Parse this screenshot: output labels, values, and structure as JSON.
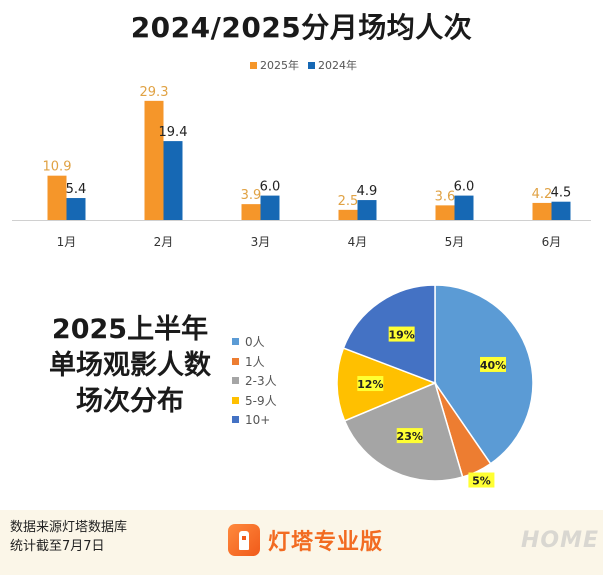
{
  "chart_data": [
    {
      "type": "bar",
      "title": "2024/2025分月场均人次",
      "categories": [
        "1月",
        "2月",
        "3月",
        "4月",
        "5月",
        "6月"
      ],
      "series": [
        {
          "name": "2025年",
          "color": "#f5962a",
          "values": [
            10.9,
            29.3,
            3.9,
            2.5,
            3.6,
            4.2
          ]
        },
        {
          "name": "2024年",
          "color": "#1668b4",
          "values": [
            5.4,
            19.4,
            6.0,
            4.9,
            6.0,
            4.5
          ]
        }
      ],
      "value_labels": [
        [
          "10.9",
          "29.3",
          "3.9",
          "2.5",
          "3.6",
          "4.2"
        ],
        [
          "5.4",
          "19.4",
          "6.0",
          "4.9",
          "6.0",
          "4.5"
        ]
      ],
      "ylim": [
        0,
        30
      ],
      "legend": "top-center",
      "grid": false
    },
    {
      "type": "pie",
      "title_lines": [
        "2025上半年",
        "单场观影人数",
        "场次分布"
      ],
      "labels": [
        "0人",
        "1人",
        "2-3人",
        "5-9人",
        "10+"
      ],
      "values": [
        40,
        5,
        23,
        12,
        19
      ],
      "value_labels": [
        "40%",
        "5%",
        "23%",
        "12%",
        "19%"
      ],
      "colors": [
        "#5b9bd5",
        "#ed7d31",
        "#a5a5a5",
        "#ffc000",
        "#4472c4"
      ],
      "legend": "left"
    }
  ],
  "footer": {
    "note_lines": [
      "数据来源灯塔数据库",
      "统计截至7月7日"
    ],
    "logo_text": "灯塔专业版",
    "logo_icon": "lighthouse-icon"
  },
  "watermark": "HOME"
}
